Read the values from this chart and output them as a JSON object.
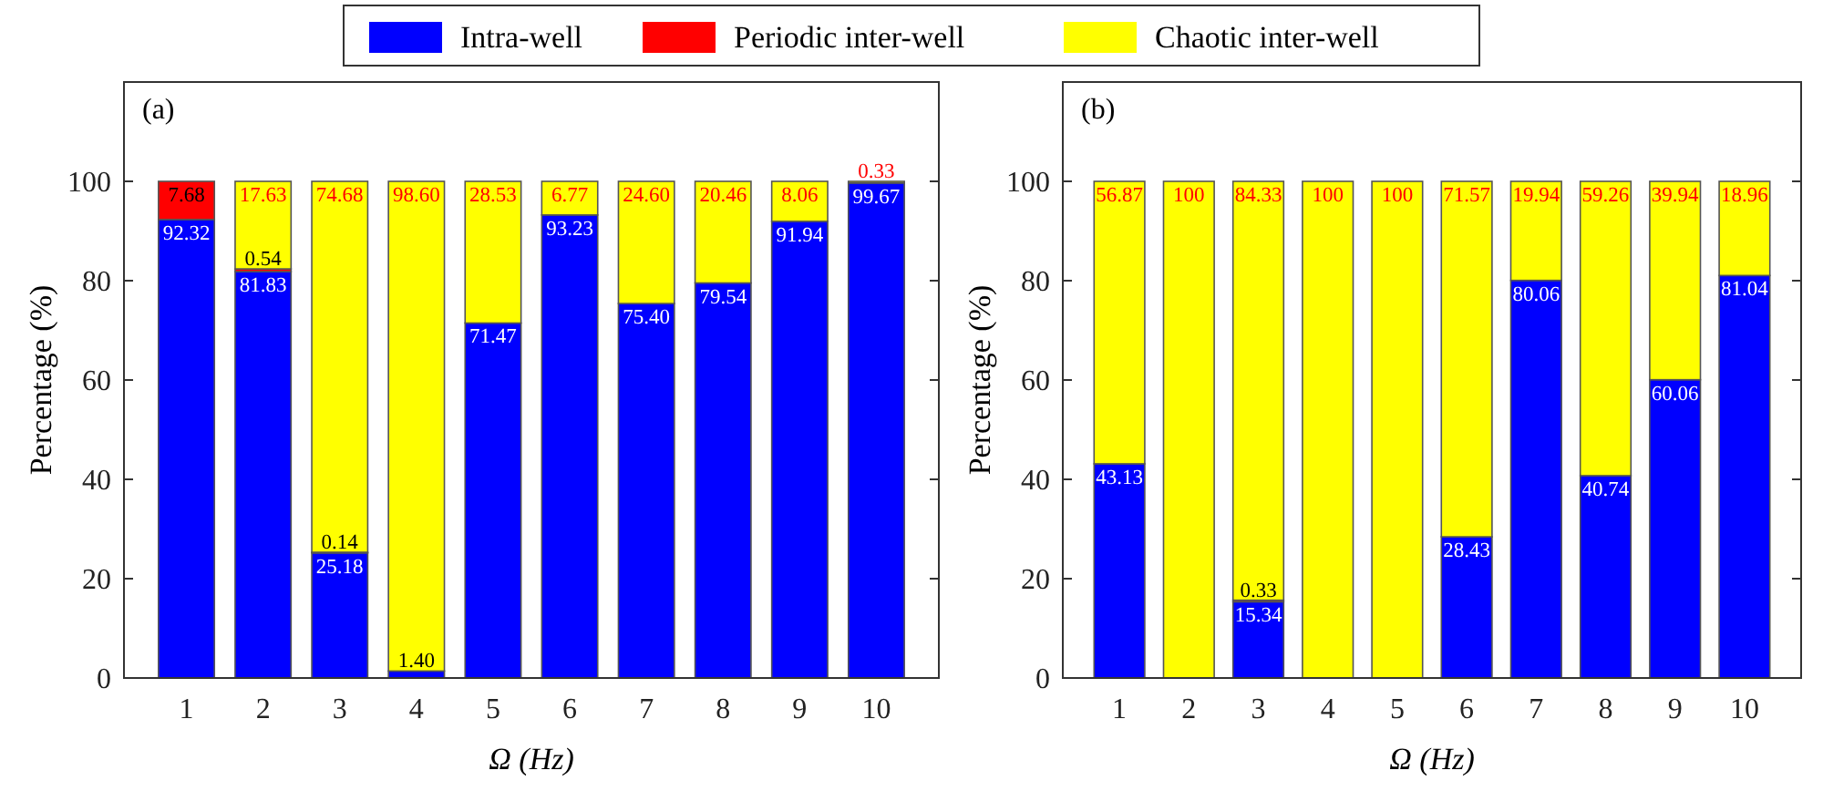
{
  "chart_data": [
    {
      "type": "bar",
      "title": "(a)",
      "xlabel": "Ω (Hz)",
      "ylabel": "Percentage (%)",
      "stacked": true,
      "legend": "top",
      "categories": [
        "1",
        "2",
        "3",
        "4",
        "5",
        "6",
        "7",
        "8",
        "9",
        "10"
      ],
      "ylim": [
        0,
        120
      ],
      "yticks": [
        0,
        20,
        40,
        60,
        80,
        100
      ],
      "series": [
        {
          "name": "Intra-well",
          "color": "#0000ff",
          "values": [
            92.32,
            81.83,
            25.18,
            1.4,
            71.47,
            93.23,
            75.4,
            79.54,
            91.94,
            99.67
          ],
          "value_labels": [
            "92.32",
            "81.83",
            "25.18",
            "1.40",
            "71.47",
            "93.23",
            "75.40",
            "79.54",
            "91.94",
            "99.67"
          ]
        },
        {
          "name": "Periodic inter-well",
          "color": "#ff0000",
          "values": [
            7.68,
            0.54,
            0.14,
            0,
            0,
            0,
            0,
            0,
            0,
            0
          ],
          "value_labels": [
            "7.68",
            "0.54",
            "0.14",
            null,
            null,
            null,
            null,
            null,
            null,
            null
          ]
        },
        {
          "name": "Chaotic inter-well",
          "color": "#ffff00",
          "values": [
            0,
            17.63,
            74.68,
            98.6,
            28.53,
            6.77,
            24.6,
            20.46,
            8.06,
            0.33
          ],
          "value_labels": [
            null,
            "17.63",
            "74.68",
            "98.60",
            "28.53",
            "6.77",
            "24.60",
            "20.46",
            "8.06",
            "0.33"
          ]
        }
      ]
    },
    {
      "type": "bar",
      "title": "(b)",
      "xlabel": "Ω (Hz)",
      "ylabel": "Percentage (%)",
      "stacked": true,
      "categories": [
        "1",
        "2",
        "3",
        "4",
        "5",
        "6",
        "7",
        "8",
        "9",
        "10"
      ],
      "ylim": [
        0,
        120
      ],
      "yticks": [
        0,
        20,
        40,
        60,
        80,
        100
      ],
      "series": [
        {
          "color": "#0000ff",
          "values": [
            43.13,
            0,
            15.34,
            0,
            0,
            28.43,
            80.06,
            40.74,
            60.06,
            81.04
          ],
          "value_labels": [
            "43.13",
            null,
            "15.34",
            null,
            null,
            "28.43",
            "80.06",
            "40.74",
            "60.06",
            "81.04"
          ]
        },
        {
          "color": "#ff0000",
          "values": [
            0,
            0,
            0.33,
            0,
            0,
            0,
            0,
            0,
            0,
            0
          ],
          "value_labels": [
            null,
            null,
            "0.33",
            null,
            null,
            null,
            null,
            null,
            null,
            null
          ]
        },
        {
          "color": "#ffff00",
          "values": [
            56.87,
            100,
            84.33,
            100,
            100,
            71.57,
            19.94,
            59.26,
            39.94,
            18.96
          ],
          "value_labels": [
            "56.87",
            "100",
            "84.33",
            "100",
            "100",
            "71.57",
            "19.94",
            "59.26",
            "39.94",
            "18.96"
          ]
        }
      ]
    }
  ]
}
